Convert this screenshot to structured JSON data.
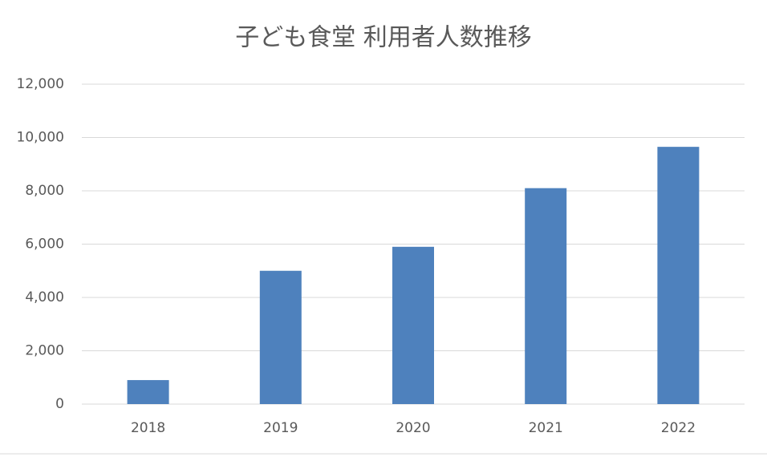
{
  "chart_data": {
    "type": "bar",
    "title": "子ども食堂 利用者人数推移",
    "categories": [
      "2018",
      "2019",
      "2020",
      "2021",
      "2022"
    ],
    "values": [
      900,
      5000,
      5900,
      8100,
      9650
    ],
    "color": "#4e81bd",
    "ylim": [
      0,
      12000
    ],
    "yticks": [
      0,
      {
        "value": 2000,
        "label": "2,000"
      },
      {
        "value": 4000,
        "label": "4,000"
      },
      {
        "value": 6000,
        "label": "6,000"
      },
      {
        "value": 8000,
        "label": "8,000"
      },
      {
        "value": 10000,
        "label": "10,000"
      },
      {
        "value": 12000,
        "label": "12,000"
      }
    ],
    "grid": true
  }
}
